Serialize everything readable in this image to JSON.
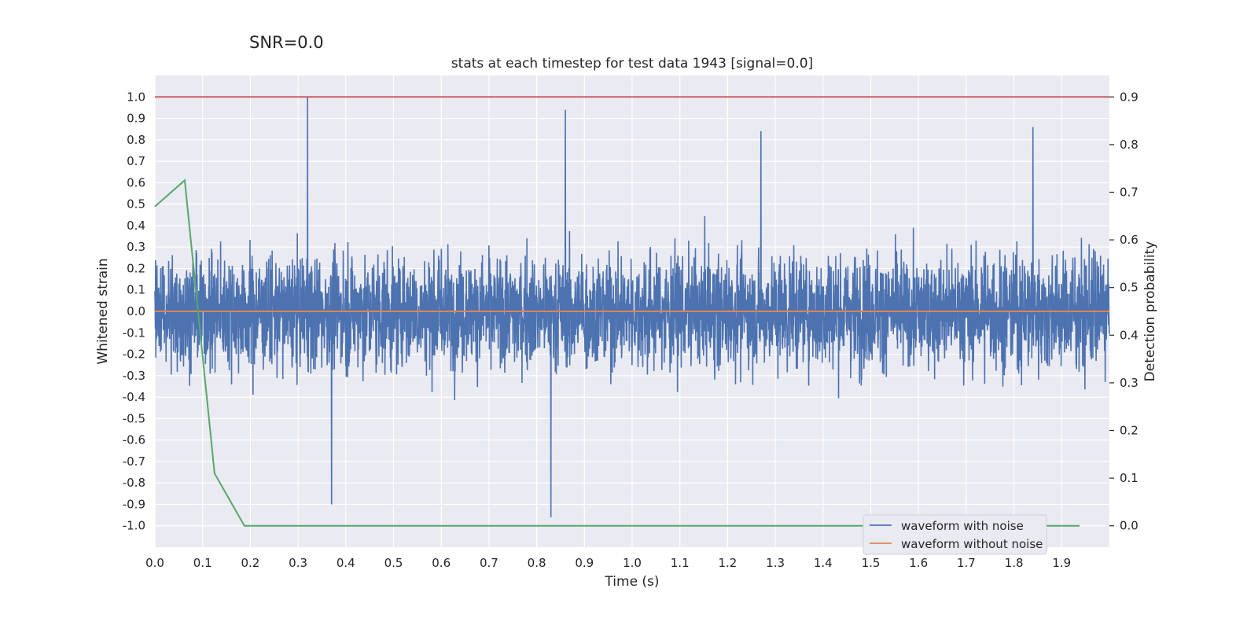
{
  "chart_data": {
    "type": "line",
    "suptitle": "SNR=0.0",
    "title": "stats at each timestep for test data 1943 [signal=0.0]",
    "xlabel": "Time (s)",
    "ylabel": "Whitened strain",
    "y2label": "Detection probability",
    "xlim": [
      0.0,
      2.0
    ],
    "ylim": [
      -1.1,
      1.1
    ],
    "y2lim": [
      -0.045,
      0.945
    ],
    "xticks": [
      "0.0",
      "0.1",
      "0.2",
      "0.3",
      "0.4",
      "0.5",
      "0.6",
      "0.7",
      "0.8",
      "0.9",
      "1.0",
      "1.1",
      "1.2",
      "1.3",
      "1.4",
      "1.5",
      "1.6",
      "1.7",
      "1.8",
      "1.9"
    ],
    "yticks": [
      "1.0",
      "0.9",
      "0.8",
      "0.7",
      "0.6",
      "0.5",
      "0.4",
      "0.3",
      "0.2",
      "0.1",
      "0.0",
      "-0.1",
      "-0.2",
      "-0.3",
      "-0.4",
      "-0.5",
      "-0.6",
      "-0.7",
      "-0.8",
      "-0.9",
      "-1.0"
    ],
    "y2ticks": [
      "0.9",
      "0.8",
      "0.7",
      "0.6",
      "0.5",
      "0.4",
      "0.3",
      "0.2",
      "0.1",
      "0.0"
    ],
    "grid": true,
    "legend_position": "lower-right",
    "colors": {
      "background": "#eaeaf2",
      "grid": "#ffffff",
      "noise": "#4c72b0",
      "clean": "#dd8452",
      "probability": "#55a868",
      "threshold": "#c44e52"
    },
    "series": [
      {
        "name": "waveform with noise",
        "axis": "left",
        "x_range": [
          0.0,
          2.0
        ],
        "n_points": 4096,
        "notable_peaks": [
          {
            "x": 0.32,
            "y": 1.0
          },
          {
            "x": 0.86,
            "y": 0.94
          },
          {
            "x": 0.83,
            "y": -0.96
          },
          {
            "x": 0.37,
            "y": -0.9
          },
          {
            "x": 1.27,
            "y": 0.84
          },
          {
            "x": 1.84,
            "y": 0.86
          }
        ],
        "amplitude_envelope": [
          -0.96,
          1.0
        ]
      },
      {
        "name": "waveform without noise",
        "axis": "left",
        "x": [
          0.0,
          2.0
        ],
        "y": [
          0.0,
          0.0
        ]
      },
      {
        "name": "",
        "axis": "right",
        "x": [
          0.0,
          0.0625,
          0.125,
          0.1875,
          1.9375
        ],
        "y": [
          0.67,
          0.725,
          0.11,
          0.0,
          0.0
        ]
      },
      {
        "name": "",
        "axis": "left",
        "x": [
          0.0,
          2.0
        ],
        "y": [
          1.0,
          1.0
        ]
      }
    ]
  }
}
